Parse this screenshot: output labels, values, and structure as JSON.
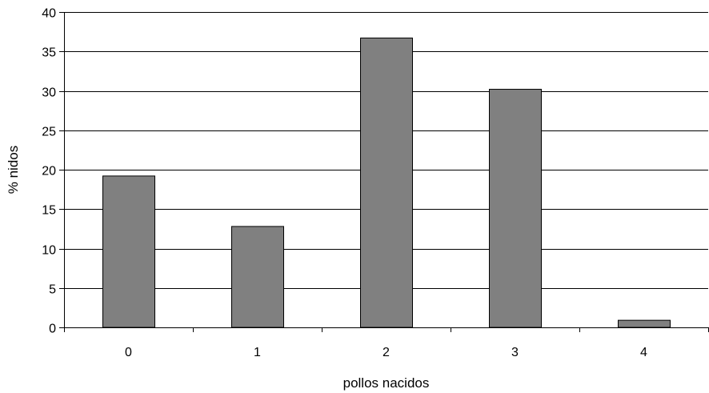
{
  "chart_data": {
    "type": "bar",
    "title": "",
    "xlabel": "pollos nacidos",
    "ylabel": "% nidos",
    "categories": [
      "0",
      "1",
      "2",
      "3",
      "4"
    ],
    "values": [
      19.2,
      12.8,
      36.7,
      30.2,
      0.9
    ],
    "ylim": [
      0,
      40
    ],
    "yticks": [
      "0",
      "5",
      "10",
      "15",
      "20",
      "25",
      "30",
      "35",
      "40"
    ],
    "grid": true,
    "legend": "none",
    "colors": {
      "bar_fill": "#808080",
      "bar_stroke": "#000000",
      "gridline": "#000000",
      "axis": "#000000"
    }
  }
}
